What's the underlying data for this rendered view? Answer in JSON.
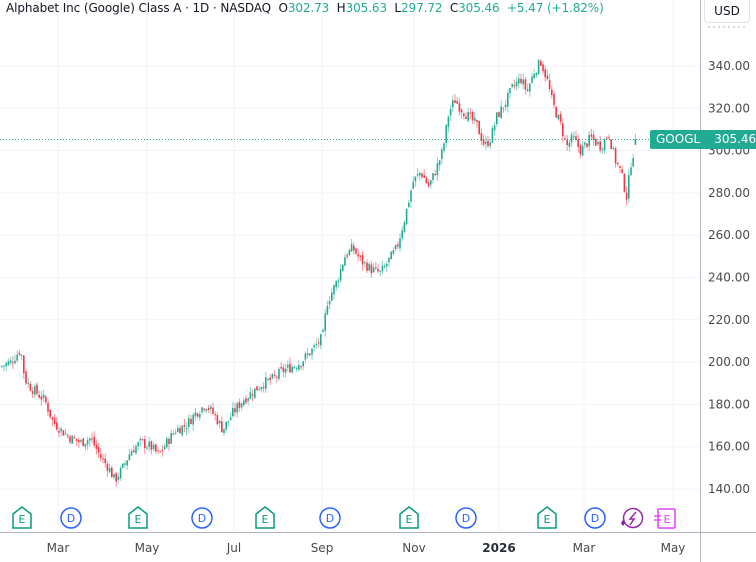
{
  "header": {
    "title": "Alphabet Inc (Google) Class A · 1D · NASDAQ",
    "open_label": "O",
    "open": "302.73",
    "high_label": "H",
    "high": "305.63",
    "low_label": "L",
    "low": "297.72",
    "close_label": "C",
    "close": "305.46",
    "change": "+5.47 (+1.82%)"
  },
  "currency": "USD",
  "price_tag": {
    "symbol": "GOOGL",
    "price": "305.46"
  },
  "colors": {
    "up": "#22ab94",
    "down": "#f23645",
    "dividend": "#2962ff",
    "earnings": "#089981",
    "split": "#9c27b0",
    "future_earnings": "#e040fb"
  },
  "y_axis": {
    "ticks": [
      "340.00",
      "320.00",
      "300.00",
      "280.00",
      "260.00",
      "240.00",
      "220.00",
      "200.00",
      "180.00",
      "160.00",
      "140.00"
    ]
  },
  "x_axis": {
    "ticks": [
      "Mar",
      "May",
      "Jul",
      "Sep",
      "Nov",
      "2026",
      "Mar",
      "May"
    ]
  },
  "events": [
    {
      "type": "earnings",
      "label": "E"
    },
    {
      "type": "dividend",
      "label": "D"
    },
    {
      "type": "earnings",
      "label": "E"
    },
    {
      "type": "dividend",
      "label": "D"
    },
    {
      "type": "earnings",
      "label": "E"
    },
    {
      "type": "dividend",
      "label": "D"
    },
    {
      "type": "earnings",
      "label": "E"
    },
    {
      "type": "dividend",
      "label": "D"
    },
    {
      "type": "earnings",
      "label": "E"
    },
    {
      "type": "dividend",
      "label": "D"
    },
    {
      "type": "split-bolt",
      "label": "⚡"
    },
    {
      "type": "future-earnings",
      "label": "E"
    }
  ],
  "chart_data": {
    "type": "candlestick",
    "title": "Alphabet Inc (Google) Class A · 1D · NASDAQ",
    "ylabel": "USD",
    "ylim": [
      125,
      350
    ],
    "x_ticks": [
      "Mar",
      "May",
      "Jul",
      "Sep",
      "Nov",
      "2026",
      "Mar",
      "May"
    ],
    "last": {
      "open": 302.73,
      "high": 305.63,
      "low": 297.72,
      "close": 305.46,
      "change": 5.47,
      "change_pct": 1.82
    },
    "close_path": [
      {
        "x": "Feb-2025",
        "close": 200
      },
      {
        "x": "Feb-end",
        "close": 185
      },
      {
        "x": "Mar",
        "close": 170
      },
      {
        "x": "Mar-end",
        "close": 160
      },
      {
        "x": "Apr",
        "close": 152
      },
      {
        "x": "Apr-low",
        "close": 146
      },
      {
        "x": "May",
        "close": 160
      },
      {
        "x": "May-end",
        "close": 170
      },
      {
        "x": "Jun",
        "close": 175
      },
      {
        "x": "Jul",
        "close": 180
      },
      {
        "x": "Jul-end",
        "close": 192
      },
      {
        "x": "Aug",
        "close": 200
      },
      {
        "x": "Aug-end",
        "close": 212
      },
      {
        "x": "Sep",
        "close": 235
      },
      {
        "x": "Sep-mid",
        "close": 252
      },
      {
        "x": "Oct",
        "close": 245
      },
      {
        "x": "Oct-end",
        "close": 268
      },
      {
        "x": "Nov",
        "close": 285
      },
      {
        "x": "Nov-mid",
        "close": 290
      },
      {
        "x": "Nov-end",
        "close": 318
      },
      {
        "x": "Dec",
        "close": 315
      },
      {
        "x": "Dec-end",
        "close": 310
      },
      {
        "x": "2026-Jan",
        "close": 318
      },
      {
        "x": "Jan-end",
        "close": 330
      },
      {
        "x": "Feb",
        "close": 342
      },
      {
        "x": "Feb-mid",
        "close": 310
      },
      {
        "x": "Mar",
        "close": 302
      },
      {
        "x": "Mar-mid",
        "close": 305
      },
      {
        "x": "Mar-end",
        "close": 280
      },
      {
        "x": "Apr",
        "close": 305.46
      }
    ]
  }
}
